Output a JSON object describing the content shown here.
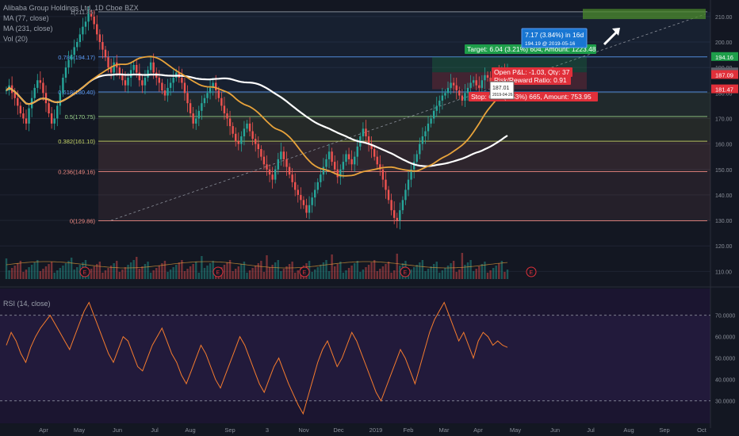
{
  "legend": {
    "symbol": "Alibaba Group Holdings Ltd. 1D Cboe BZX",
    "ma1": "MA (77, close)",
    "ma2": "MA (231, close)",
    "vol": "Vol (20)"
  },
  "rsi_label": "RSI (14, close)",
  "chart_data": [
    {
      "type": "candlestick",
      "title": "Alibaba Group Holdings Ltd. 1D Cboe BZX",
      "x_ticks": [
        "Apr",
        "May",
        "Jun",
        "Jul",
        "Aug",
        "Sep",
        "3",
        "Nov",
        "Dec",
        "2019",
        "Feb",
        "Mar",
        "Apr",
        "May",
        "Jun",
        "Jul",
        "Aug",
        "Sep",
        "Oct"
      ],
      "y_ticks": [
        110,
        120,
        130,
        140,
        150,
        160,
        170,
        180,
        190,
        200,
        210
      ],
      "ylim": [
        107,
        214
      ],
      "price_closes": [
        181,
        183,
        180,
        178,
        175,
        172,
        170,
        168,
        174,
        178,
        182,
        185,
        184,
        180,
        176,
        172,
        168,
        170,
        175,
        180,
        186,
        190,
        193,
        195,
        198,
        200,
        203,
        206,
        208,
        211,
        210,
        207,
        203,
        200,
        197,
        194,
        190,
        188,
        192,
        190,
        187,
        185,
        183,
        186,
        189,
        191,
        188,
        185,
        183,
        186,
        189,
        192,
        188,
        186,
        184,
        181,
        179,
        182,
        184,
        186,
        188,
        186,
        184,
        180,
        176,
        172,
        168,
        170,
        173,
        176,
        178,
        180,
        182,
        184,
        181,
        178,
        175,
        172,
        170,
        167,
        164,
        161,
        160,
        163,
        166,
        168,
        165,
        162,
        160,
        158,
        155,
        152,
        150,
        148,
        146,
        150,
        154,
        157,
        154,
        151,
        148,
        145,
        142,
        140,
        138,
        136,
        133,
        136,
        139,
        142,
        145,
        148,
        151,
        154,
        157,
        153,
        150,
        147,
        150,
        153,
        156,
        154,
        152,
        155,
        159,
        163,
        166,
        163,
        160,
        158,
        155,
        152,
        150,
        146,
        142,
        138,
        134,
        131,
        130,
        134,
        138,
        142,
        146,
        150,
        153,
        156,
        160,
        163,
        165,
        168,
        170,
        173,
        175,
        177,
        179,
        180,
        182,
        184,
        183,
        181,
        179,
        177,
        180,
        182,
        184,
        185,
        183,
        182,
        185,
        187,
        186,
        184,
        186,
        188,
        187,
        189,
        188,
        188
      ],
      "fibonacci": [
        {
          "label": "0.786(194.17)",
          "value": 194.17,
          "color": "#5b9cf6"
        },
        {
          "label": "0.618(180.40)",
          "value": 180.4,
          "color": "#5b9cf6"
        },
        {
          "label": "0.5(170.75)",
          "value": 170.75,
          "color": "#9bd38a"
        },
        {
          "label": "0.382(161.10)",
          "value": 161.1,
          "color": "#c9d86a"
        },
        {
          "label": "0.236(149.16)",
          "value": 149.16,
          "color": "#f28b82"
        },
        {
          "label": "0(129.86)",
          "value": 129.86,
          "color": "#f28b82"
        },
        {
          "label": "1(211.85)",
          "value": 211.85,
          "color": "#9aa0ab"
        }
      ],
      "price_labels": [
        {
          "text": "194.16",
          "value": 194.16,
          "color": "#1e9e4a"
        },
        {
          "text": "188.12",
          "value": 188.12,
          "color": "#5d606b"
        },
        {
          "text": "187.09",
          "value": 187.09,
          "color": "#e0303a"
        },
        {
          "text": "181.47",
          "value": 181.47,
          "color": "#e0303a"
        }
      ],
      "annotations": {
        "target": "Target: 6.04 (3.21%) 604, Amount: 1223.48",
        "open": "Open P&L: -1.03, Qty: 37",
        "risk": "Risk/Reward Ratio: 0.91",
        "stop": "Stop: 6.65 (3.53%) 665, Amount: 753.95",
        "projection_main": "7.17 (3.84%) in 16d",
        "projection_sub": "194.19 @ 2019-05-16",
        "tooltip_price": "187.01",
        "tooltip_date": "2019-04-26"
      },
      "earnings_marker": "E",
      "colors": {
        "up": "#26a69a",
        "down": "#ef5350",
        "ma77": "#e8a33b",
        "ma231": "#ffffff",
        "rsi": "#f57c2e"
      }
    },
    {
      "type": "line",
      "title": "RSI (14, close)",
      "y_ticks": [
        "70.0000",
        "60.0000",
        "50.0000",
        "40.0000",
        "30.0000"
      ],
      "ylim": [
        21,
        81
      ],
      "bands": [
        70,
        30
      ],
      "values": [
        56,
        62,
        58,
        52,
        48,
        55,
        60,
        64,
        67,
        70,
        66,
        62,
        58,
        54,
        60,
        66,
        72,
        76,
        70,
        64,
        58,
        52,
        48,
        54,
        60,
        58,
        52,
        46,
        44,
        50,
        56,
        60,
        64,
        58,
        52,
        48,
        42,
        38,
        44,
        50,
        56,
        52,
        46,
        40,
        36,
        42,
        48,
        54,
        60,
        56,
        50,
        44,
        38,
        34,
        40,
        46,
        50,
        44,
        38,
        33,
        28,
        24,
        32,
        40,
        48,
        54,
        58,
        52,
        46,
        50,
        56,
        62,
        58,
        52,
        46,
        40,
        34,
        30,
        36,
        42,
        48,
        54,
        50,
        44,
        38,
        46,
        54,
        62,
        68,
        72,
        76,
        70,
        64,
        58,
        62,
        56,
        50,
        58,
        62,
        60,
        56,
        58,
        56,
        55
      ]
    }
  ]
}
